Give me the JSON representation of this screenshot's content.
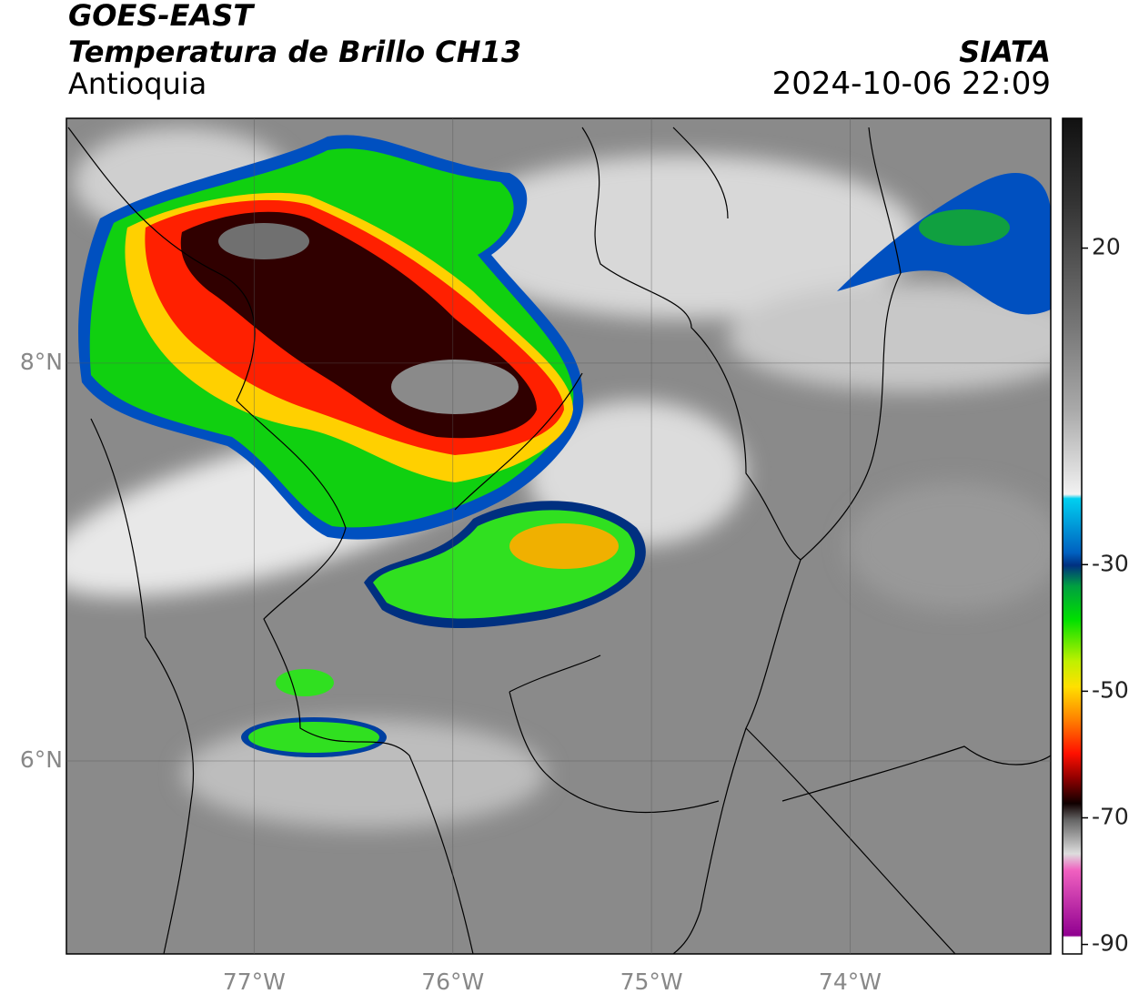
{
  "header": {
    "title": "GOES-EAST",
    "subtitle": "Temperatura de Brillo CH13",
    "region": "Antioquia",
    "source": "SIATA",
    "timestamp": "2024-10-06 22:09"
  },
  "map": {
    "lon_range": [
      -77.945,
      -72.99
    ],
    "lat_range": [
      5.03,
      9.23
    ],
    "lat_ticks": [
      {
        "value": 8,
        "label": "8°N"
      },
      {
        "value": 6,
        "label": "6°N"
      }
    ],
    "lon_ticks": [
      {
        "value": -77,
        "label": "77°W"
      },
      {
        "value": -76,
        "label": "76°W"
      },
      {
        "value": -75,
        "label": "75°W"
      },
      {
        "value": -74,
        "label": "74°W"
      }
    ]
  },
  "colorbar": {
    "range": [
      -91.5,
      40.5
    ],
    "ticks": [
      20,
      -30,
      -50,
      -70,
      -90
    ]
  }
}
